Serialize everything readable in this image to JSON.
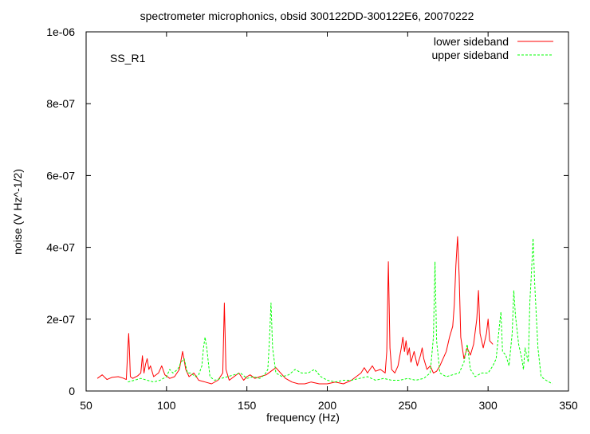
{
  "chart_data": {
    "type": "line",
    "title": "spectrometer microphonics, obsid 300122DD-300122E6, 20070222",
    "xlabel": "frequency (Hz)",
    "ylabel": "noise (V Hz^-1/2)",
    "annotation": "SS_R1",
    "xlim": [
      50,
      350
    ],
    "ylim": [
      0,
      1e-06
    ],
    "x_ticks": [
      50,
      100,
      150,
      200,
      250,
      300,
      350
    ],
    "x_tick_labels": [
      "50",
      "100",
      "150",
      "200",
      "250",
      "300",
      "350"
    ],
    "y_ticks": [
      0,
      2e-07,
      4e-07,
      6e-07,
      8e-07,
      1e-06
    ],
    "y_tick_labels": [
      "0",
      "2e-07",
      "4e-07",
      "6e-07",
      "8e-07",
      "1e-06"
    ],
    "grid": false,
    "legend_position": "top-right",
    "series": [
      {
        "name": "lower sideband",
        "color": "#ff0000",
        "dash": "solid",
        "points": [
          [
            57,
            3.5e-08
          ],
          [
            60,
            4.5e-08
          ],
          [
            63,
            3.2e-08
          ],
          [
            66,
            3.8e-08
          ],
          [
            70,
            4e-08
          ],
          [
            73,
            3.6e-08
          ],
          [
            75,
            3.2e-08
          ],
          [
            76,
            1.2e-07
          ],
          [
            76.5,
            1.6e-07
          ],
          [
            77,
            1.1e-07
          ],
          [
            77.5,
            4e-08
          ],
          [
            79,
            3.5e-08
          ],
          [
            82,
            4.2e-08
          ],
          [
            84,
            5e-08
          ],
          [
            85,
            9.8e-08
          ],
          [
            86,
            5e-08
          ],
          [
            87,
            7.5e-08
          ],
          [
            88,
            9e-08
          ],
          [
            89,
            6e-08
          ],
          [
            90,
            7e-08
          ],
          [
            92,
            4e-08
          ],
          [
            95,
            5e-08
          ],
          [
            97,
            7e-08
          ],
          [
            99,
            4.5e-08
          ],
          [
            102,
            3.5e-08
          ],
          [
            105,
            4e-08
          ],
          [
            108,
            6e-08
          ],
          [
            110,
            1.1e-07
          ],
          [
            112,
            6e-08
          ],
          [
            114,
            4e-08
          ],
          [
            117,
            5e-08
          ],
          [
            120,
            3e-08
          ],
          [
            124,
            2.5e-08
          ],
          [
            128,
            2e-08
          ],
          [
            132,
            3e-08
          ],
          [
            135,
            5e-08
          ],
          [
            136,
            2.45e-07
          ],
          [
            137,
            6e-08
          ],
          [
            139,
            3e-08
          ],
          [
            142,
            4e-08
          ],
          [
            145,
            5e-08
          ],
          [
            148,
            3e-08
          ],
          [
            150,
            4e-08
          ],
          [
            152,
            4.5e-08
          ],
          [
            155,
            3.5e-08
          ],
          [
            158,
            4e-08
          ],
          [
            162,
            4.5e-08
          ],
          [
            165,
            5.5e-08
          ],
          [
            168,
            6.5e-08
          ],
          [
            171,
            5e-08
          ],
          [
            174,
            3.5e-08
          ],
          [
            178,
            2.5e-08
          ],
          [
            182,
            2e-08
          ],
          [
            186,
            2e-08
          ],
          [
            190,
            2.5e-08
          ],
          [
            195,
            2e-08
          ],
          [
            200,
            2e-08
          ],
          [
            205,
            2.5e-08
          ],
          [
            210,
            2e-08
          ],
          [
            215,
            3e-08
          ],
          [
            218,
            4e-08
          ],
          [
            221,
            5e-08
          ],
          [
            223,
            6.5e-08
          ],
          [
            225,
            5e-08
          ],
          [
            228,
            7e-08
          ],
          [
            230,
            5.5e-08
          ],
          [
            233,
            6e-08
          ],
          [
            236,
            5e-08
          ],
          [
            237,
            1.1e-07
          ],
          [
            238,
            3.6e-07
          ],
          [
            239,
            1.2e-07
          ],
          [
            240,
            6e-08
          ],
          [
            242,
            5e-08
          ],
          [
            244,
            7e-08
          ],
          [
            246,
            1.2e-07
          ],
          [
            247,
            1.5e-07
          ],
          [
            248,
            1.1e-07
          ],
          [
            249,
            1.4e-07
          ],
          [
            250,
            1e-07
          ],
          [
            251,
            1.2e-07
          ],
          [
            252,
            8e-08
          ],
          [
            254,
            1.1e-07
          ],
          [
            256,
            7e-08
          ],
          [
            258,
            1e-07
          ],
          [
            259,
            1.2e-07
          ],
          [
            260,
            9e-08
          ],
          [
            262,
            6e-08
          ],
          [
            264,
            7e-08
          ],
          [
            266,
            5e-08
          ],
          [
            268,
            5.5e-08
          ],
          [
            270,
            7e-08
          ],
          [
            272,
            9e-08
          ],
          [
            274,
            1.1e-07
          ],
          [
            276,
            1.5e-07
          ],
          [
            278,
            1.8e-07
          ],
          [
            279,
            2.4e-07
          ],
          [
            280,
            3.5e-07
          ],
          [
            281,
            4.3e-07
          ],
          [
            282,
            3.2e-07
          ],
          [
            283,
            1.5e-07
          ],
          [
            285,
            9e-08
          ],
          [
            287,
            1.2e-07
          ],
          [
            289,
            1e-07
          ],
          [
            291,
            1.3e-07
          ],
          [
            293,
            2e-07
          ],
          [
            294,
            2.8e-07
          ],
          [
            295,
            1.6e-07
          ],
          [
            297,
            1.2e-07
          ],
          [
            299,
            1.6e-07
          ],
          [
            300,
            2e-07
          ],
          [
            301,
            1.4e-07
          ],
          [
            303,
            1.3e-07
          ]
        ]
      },
      {
        "name": "upper sideband",
        "color": "#00ff00",
        "dash": "dashed",
        "points": [
          [
            76,
            2.5e-08
          ],
          [
            80,
            3e-08
          ],
          [
            84,
            3.5e-08
          ],
          [
            88,
            3e-08
          ],
          [
            92,
            2.5e-08
          ],
          [
            96,
            3e-08
          ],
          [
            100,
            4e-08
          ],
          [
            102,
            6e-08
          ],
          [
            104,
            5e-08
          ],
          [
            107,
            6e-08
          ],
          [
            109,
            8e-08
          ],
          [
            111,
            9e-08
          ],
          [
            113,
            5e-08
          ],
          [
            115,
            5e-08
          ],
          [
            118,
            4e-08
          ],
          [
            120,
            4.5e-08
          ],
          [
            122,
            7e-08
          ],
          [
            123,
            1.2e-07
          ],
          [
            124,
            1.5e-07
          ],
          [
            125,
            1.2e-07
          ],
          [
            127,
            4e-08
          ],
          [
            130,
            3e-08
          ],
          [
            134,
            3.5e-08
          ],
          [
            138,
            4e-08
          ],
          [
            142,
            4.5e-08
          ],
          [
            146,
            5e-08
          ],
          [
            150,
            3.5e-08
          ],
          [
            154,
            4e-08
          ],
          [
            158,
            3.5e-08
          ],
          [
            161,
            4.5e-08
          ],
          [
            163,
            6e-08
          ],
          [
            164,
            1.4e-07
          ],
          [
            165,
            2.45e-07
          ],
          [
            166,
            1.2e-07
          ],
          [
            168,
            5e-08
          ],
          [
            172,
            4e-08
          ],
          [
            176,
            4.5e-08
          ],
          [
            180,
            6e-08
          ],
          [
            184,
            5e-08
          ],
          [
            188,
            5e-08
          ],
          [
            192,
            6e-08
          ],
          [
            196,
            4e-08
          ],
          [
            200,
            3e-08
          ],
          [
            205,
            2.5e-08
          ],
          [
            210,
            3e-08
          ],
          [
            215,
            3e-08
          ],
          [
            220,
            3.5e-08
          ],
          [
            225,
            4e-08
          ],
          [
            230,
            3e-08
          ],
          [
            235,
            3.5e-08
          ],
          [
            240,
            3e-08
          ],
          [
            245,
            3e-08
          ],
          [
            250,
            3.5e-08
          ],
          [
            255,
            3e-08
          ],
          [
            260,
            3.5e-08
          ],
          [
            264,
            5e-08
          ],
          [
            266,
            1.5e-07
          ],
          [
            267,
            3.6e-07
          ],
          [
            268,
            1.4e-07
          ],
          [
            270,
            5e-08
          ],
          [
            274,
            4e-08
          ],
          [
            278,
            4.5e-08
          ],
          [
            282,
            5e-08
          ],
          [
            285,
            8e-08
          ],
          [
            287,
            1.3e-07
          ],
          [
            289,
            6e-08
          ],
          [
            292,
            4e-08
          ],
          [
            296,
            5e-08
          ],
          [
            300,
            5e-08
          ],
          [
            303,
            7e-08
          ],
          [
            305,
            9e-08
          ],
          [
            307,
            1.8e-07
          ],
          [
            308,
            2.2e-07
          ],
          [
            309,
            1.1e-07
          ],
          [
            311,
            1e-07
          ],
          [
            313,
            7e-08
          ],
          [
            315,
            1.6e-07
          ],
          [
            316,
            2.8e-07
          ],
          [
            317,
            2.1e-07
          ],
          [
            319,
            1.3e-07
          ],
          [
            321,
            9e-08
          ],
          [
            322,
            6e-08
          ],
          [
            323,
            1.2e-07
          ],
          [
            325,
            8e-08
          ],
          [
            326,
            2.5e-07
          ],
          [
            327,
            3.3e-07
          ],
          [
            328,
            4.25e-07
          ],
          [
            329,
            3e-07
          ],
          [
            331,
            1.2e-07
          ],
          [
            333,
            4e-08
          ],
          [
            336,
            3e-08
          ],
          [
            340,
            2e-08
          ]
        ]
      }
    ]
  }
}
